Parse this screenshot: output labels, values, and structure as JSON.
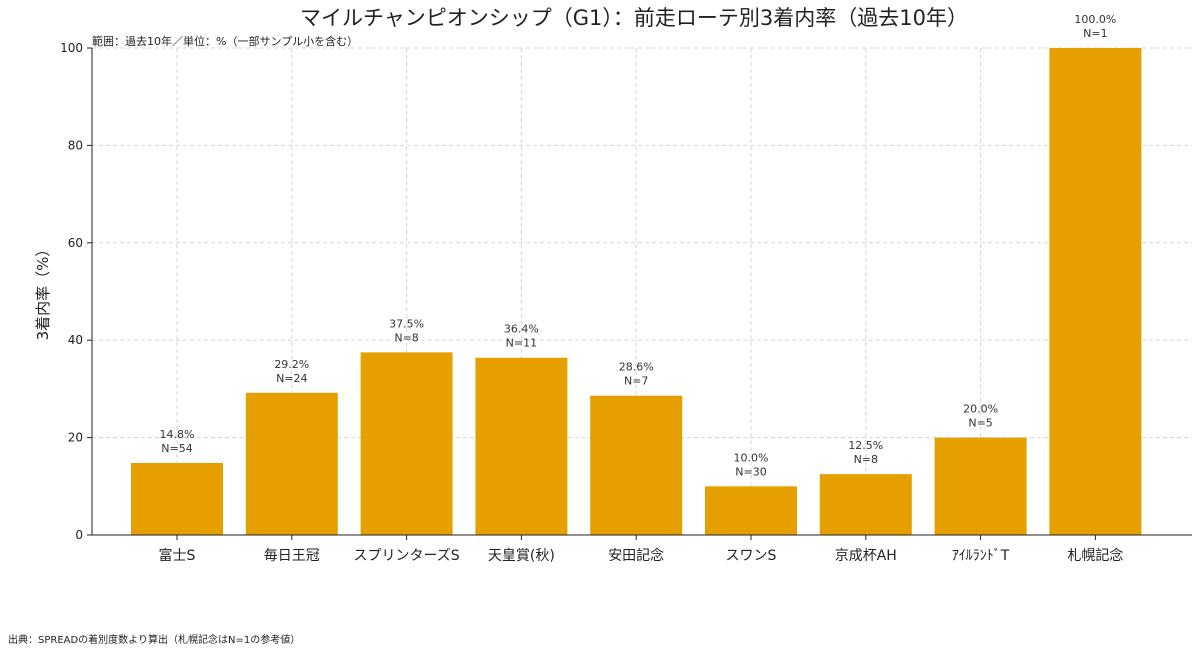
{
  "chart_data": {
    "type": "bar",
    "title": "マイルチャンピオンシップ（G1）：前走ローテ別3着内率（過去10年）",
    "subtitle": "範囲：過去10年／単位：%（一部サンプル小を含む）",
    "xlabel": "",
    "ylabel": "3着内率（%）",
    "ylim": [
      0,
      100
    ],
    "yticks": [
      0,
      20,
      40,
      60,
      80,
      100
    ],
    "grid": true,
    "categories": [
      "富士S",
      "毎日王冠",
      "スプリンターズS",
      "天皇賞(秋)",
      "安田記念",
      "スワンS",
      "京成杯AH",
      "ｱｲﾙﾗﾝﾄﾞT",
      "札幌記念"
    ],
    "values": [
      14.8,
      29.2,
      37.5,
      36.4,
      28.6,
      10.0,
      12.5,
      20.0,
      100.0
    ],
    "value_labels": [
      "14.8%",
      "29.2%",
      "37.5%",
      "36.4%",
      "28.6%",
      "10.0%",
      "12.5%",
      "20.0%",
      "100.0%"
    ],
    "n_labels": [
      "N=54",
      "N=24",
      "N=8",
      "N=11",
      "N=7",
      "N=30",
      "N=8",
      "N=5",
      "N=1"
    ],
    "bar_color": "#e5a000",
    "source": "出典：SPREADの着別度数より算出（札幌記念はN=1の参考値）"
  }
}
